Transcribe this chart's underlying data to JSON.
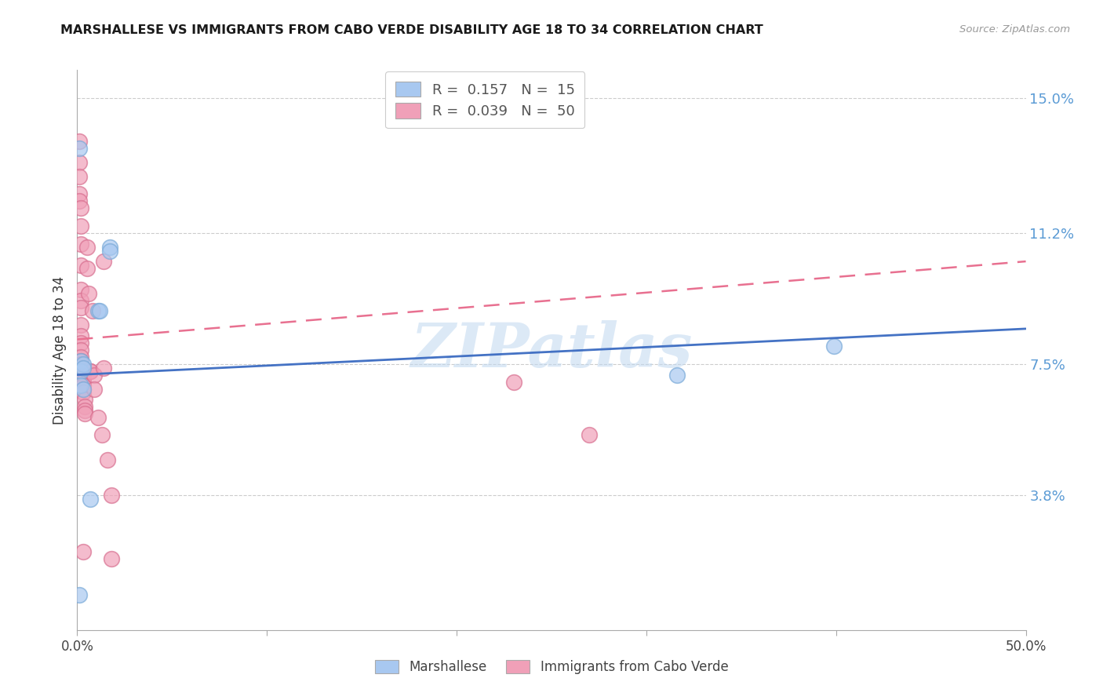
{
  "title": "MARSHALLESE VS IMMIGRANTS FROM CABO VERDE DISABILITY AGE 18 TO 34 CORRELATION CHART",
  "source": "Source: ZipAtlas.com",
  "ylabel_label": "Disability Age 18 to 34",
  "legend_labels_bottom": [
    "Marshallese",
    "Immigrants from Cabo Verde"
  ],
  "marshallese_color": "#a8c8f0",
  "marshallese_edge_color": "#7aaad8",
  "cabo_verde_color": "#f0a0b8",
  "cabo_verde_edge_color": "#d87090",
  "marshallese_scatter": [
    [
      0.001,
      0.136
    ],
    [
      0.001,
      0.01
    ],
    [
      0.002,
      0.076
    ],
    [
      0.002,
      0.073
    ],
    [
      0.002,
      0.069
    ],
    [
      0.003,
      0.075
    ],
    [
      0.003,
      0.068
    ],
    [
      0.007,
      0.037
    ],
    [
      0.011,
      0.09
    ],
    [
      0.012,
      0.09
    ],
    [
      0.017,
      0.108
    ],
    [
      0.017,
      0.107
    ],
    [
      0.316,
      0.072
    ],
    [
      0.399,
      0.08
    ],
    [
      0.003,
      0.074
    ]
  ],
  "cabo_verde_scatter": [
    [
      0.001,
      0.138
    ],
    [
      0.001,
      0.132
    ],
    [
      0.001,
      0.128
    ],
    [
      0.001,
      0.123
    ],
    [
      0.001,
      0.121
    ],
    [
      0.002,
      0.119
    ],
    [
      0.002,
      0.114
    ],
    [
      0.002,
      0.109
    ],
    [
      0.002,
      0.103
    ],
    [
      0.002,
      0.096
    ],
    [
      0.002,
      0.093
    ],
    [
      0.002,
      0.091
    ],
    [
      0.002,
      0.086
    ],
    [
      0.002,
      0.083
    ],
    [
      0.002,
      0.081
    ],
    [
      0.002,
      0.079
    ],
    [
      0.002,
      0.077
    ],
    [
      0.002,
      0.076
    ],
    [
      0.002,
      0.075
    ],
    [
      0.002,
      0.074
    ],
    [
      0.003,
      0.073
    ],
    [
      0.003,
      0.072
    ],
    [
      0.003,
      0.071
    ],
    [
      0.003,
      0.07
    ],
    [
      0.003,
      0.07
    ],
    [
      0.003,
      0.069
    ],
    [
      0.003,
      0.068
    ],
    [
      0.003,
      0.067
    ],
    [
      0.004,
      0.065
    ],
    [
      0.004,
      0.063
    ],
    [
      0.004,
      0.062
    ],
    [
      0.004,
      0.061
    ],
    [
      0.005,
      0.108
    ],
    [
      0.005,
      0.102
    ],
    [
      0.006,
      0.095
    ],
    [
      0.007,
      0.073
    ],
    [
      0.007,
      0.073
    ],
    [
      0.008,
      0.09
    ],
    [
      0.009,
      0.072
    ],
    [
      0.009,
      0.068
    ],
    [
      0.011,
      0.06
    ],
    [
      0.013,
      0.055
    ],
    [
      0.014,
      0.104
    ],
    [
      0.014,
      0.074
    ],
    [
      0.016,
      0.048
    ],
    [
      0.018,
      0.038
    ],
    [
      0.23,
      0.07
    ],
    [
      0.27,
      0.055
    ],
    [
      0.018,
      0.02
    ],
    [
      0.003,
      0.022
    ]
  ],
  "marshallese_line_x": [
    0.0,
    0.5
  ],
  "marshallese_line_y": [
    0.072,
    0.085
  ],
  "cabo_verde_line_x": [
    0.0,
    0.5
  ],
  "cabo_verde_line_y": [
    0.082,
    0.104
  ],
  "xlim": [
    0.0,
    0.5
  ],
  "ylim": [
    0.0,
    0.158
  ],
  "yticks": [
    0.038,
    0.075,
    0.112,
    0.15
  ],
  "ytick_labels": [
    "3.8%",
    "7.5%",
    "11.2%",
    "15.0%"
  ],
  "xticks": [
    0.0,
    0.1,
    0.2,
    0.3,
    0.4,
    0.5
  ],
  "xtick_labels": [
    "0.0%",
    "",
    "",
    "",
    "",
    "50.0%"
  ],
  "watermark": "ZIPatlas",
  "background_color": "#ffffff",
  "grid_color": "#cccccc",
  "marshallese_R": "0.157",
  "marshallese_N": "15",
  "cabo_verde_R": "0.039",
  "cabo_verde_N": "50",
  "line_blue": "#4472c4",
  "line_pink": "#e87090",
  "right_axis_color": "#5b9bd5"
}
